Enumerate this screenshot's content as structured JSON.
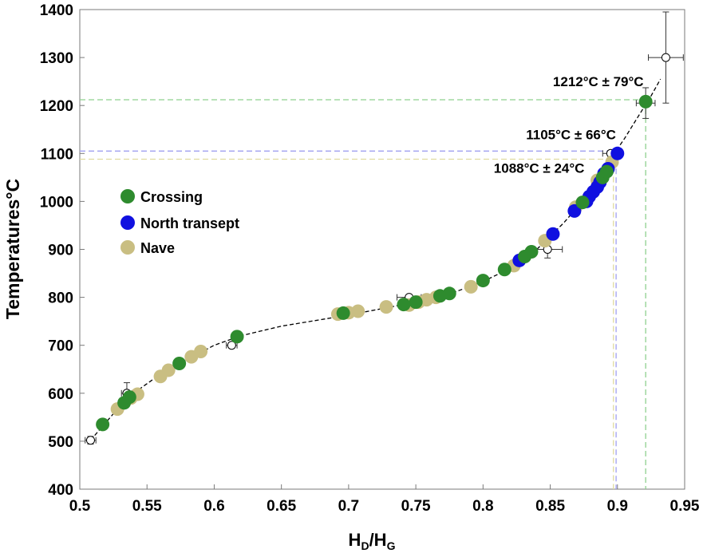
{
  "chart_data": {
    "type": "scatter",
    "xlabel_main": "H",
    "xlabel_sub1": "D",
    "xlabel_sep": "/H",
    "xlabel_sub2": "G",
    "ylabel": "Temperatures°C",
    "xlim": [
      0.5,
      0.95
    ],
    "ylim": [
      400,
      1400
    ],
    "x_ticks": [
      "0.5",
      "0.55",
      "0.6",
      "0.65",
      "0.7",
      "0.75",
      "0.8",
      "0.85",
      "0.9",
      "0.95"
    ],
    "y_ticks": [
      "400",
      "500",
      "600",
      "700",
      "800",
      "900",
      "1000",
      "1100",
      "1200",
      "1300",
      "1400"
    ],
    "legend": [
      {
        "name": "Crossing",
        "color": "#2e8b2e"
      },
      {
        "name": "North transept",
        "color": "#1010e0"
      },
      {
        "name": "Nave",
        "color": "#c9be82"
      }
    ],
    "series": [
      {
        "name": "Nave",
        "color": "#c9be82",
        "points": [
          [
            0.528,
            567
          ],
          [
            0.538,
            590
          ],
          [
            0.543,
            598
          ],
          [
            0.56,
            635
          ],
          [
            0.566,
            648
          ],
          [
            0.583,
            676
          ],
          [
            0.59,
            687
          ],
          [
            0.692,
            765
          ],
          [
            0.7,
            768
          ],
          [
            0.707,
            771
          ],
          [
            0.728,
            780
          ],
          [
            0.745,
            784
          ],
          [
            0.752,
            790
          ],
          [
            0.758,
            795
          ],
          [
            0.765,
            800
          ],
          [
            0.791,
            822
          ],
          [
            0.823,
            866
          ],
          [
            0.846,
            918
          ],
          [
            0.869,
            988
          ],
          [
            0.885,
            1044
          ],
          [
            0.896,
            1082
          ]
        ]
      },
      {
        "name": "North transept",
        "color": "#1010e0",
        "points": [
          [
            0.827,
            877
          ],
          [
            0.852,
            932
          ],
          [
            0.868,
            980
          ],
          [
            0.877,
            1000
          ],
          [
            0.879,
            1010
          ],
          [
            0.882,
            1020
          ],
          [
            0.885,
            1030
          ],
          [
            0.887,
            1040
          ],
          [
            0.89,
            1058
          ],
          [
            0.893,
            1068
          ],
          [
            0.9,
            1100
          ]
        ]
      },
      {
        "name": "Crossing",
        "color": "#2e8b2e",
        "points": [
          [
            0.517,
            535
          ],
          [
            0.533,
            580
          ],
          [
            0.537,
            592
          ],
          [
            0.574,
            662
          ],
          [
            0.617,
            718
          ],
          [
            0.696,
            767
          ],
          [
            0.741,
            785
          ],
          [
            0.75,
            790
          ],
          [
            0.768,
            803
          ],
          [
            0.775,
            808
          ],
          [
            0.8,
            835
          ],
          [
            0.816,
            858
          ],
          [
            0.831,
            885
          ],
          [
            0.836,
            895
          ],
          [
            0.874,
            998
          ],
          [
            0.889,
            1050
          ],
          [
            0.892,
            1062
          ],
          [
            0.921,
            1208
          ]
        ]
      }
    ],
    "calibration_points": [
      {
        "x": 0.508,
        "y": 502,
        "xerr": 0.004,
        "yerr": 8
      },
      {
        "x": 0.535,
        "y": 600,
        "xerr": 0.004,
        "yerr": 22
      },
      {
        "x": 0.613,
        "y": 700,
        "xerr": 0.004,
        "yerr": 6
      },
      {
        "x": 0.745,
        "y": 800,
        "xerr": 0.009,
        "yerr": 6
      },
      {
        "x": 0.848,
        "y": 900,
        "xerr": 0.011,
        "yerr": 18
      },
      {
        "x": 0.895,
        "y": 1100,
        "xerr": 0.006,
        "yerr": 6
      },
      {
        "x": 0.921,
        "y": 1205,
        "xerr": 0.007,
        "yerr": 32
      },
      {
        "x": 0.936,
        "y": 1300,
        "xerr": 0.013,
        "yerr": 95
      }
    ],
    "fit_curve": [
      [
        0.508,
        502
      ],
      [
        0.535,
        590
      ],
      [
        0.56,
        640
      ],
      [
        0.6,
        700
      ],
      [
        0.62,
        720
      ],
      [
        0.65,
        740
      ],
      [
        0.7,
        763
      ],
      [
        0.75,
        790
      ],
      [
        0.78,
        812
      ],
      [
        0.8,
        833
      ],
      [
        0.82,
        860
      ],
      [
        0.84,
        900
      ],
      [
        0.86,
        955
      ],
      [
        0.88,
        1020
      ],
      [
        0.895,
        1090
      ],
      [
        0.905,
        1130
      ],
      [
        0.915,
        1175
      ],
      [
        0.925,
        1220
      ],
      [
        0.932,
        1255
      ]
    ],
    "reference_lines": [
      {
        "label": "1212°C ± 79°C",
        "y": 1212,
        "x": 0.921,
        "color": "#8fd08f"
      },
      {
        "label": "1105°C ± 66°C",
        "y": 1105,
        "x": 0.899,
        "color": "#a0a0f0"
      },
      {
        "label": "1088°C ± 24°C",
        "y": 1088,
        "x": 0.897,
        "color": "#e0dba0"
      }
    ],
    "annotations": [
      {
        "text": "1212°C ± 79°C",
        "x": 0.852,
        "y": 1240
      },
      {
        "text": "1105°C ± 66°C",
        "x": 0.832,
        "y": 1130
      },
      {
        "text": "1088°C ± 24°C",
        "x": 0.808,
        "y": 1060
      }
    ],
    "grid": false
  }
}
